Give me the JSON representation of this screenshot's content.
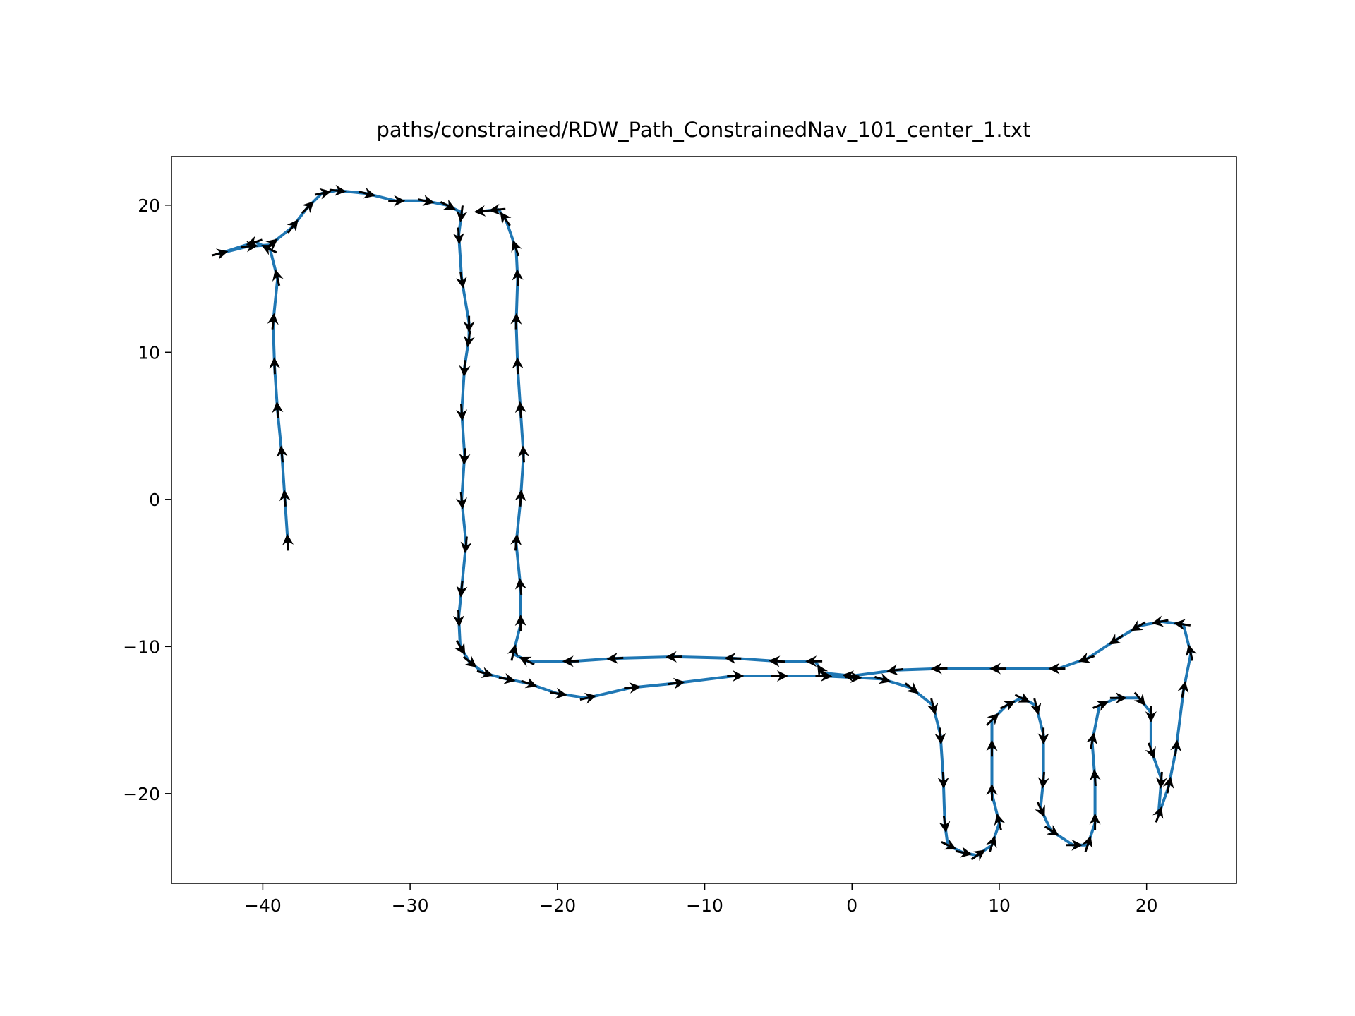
{
  "chart_data": {
    "type": "line",
    "title": "paths/constrained/RDW_Path_ConstrainedNav_101_center_1.txt",
    "x": [
      -38.3,
      -38.5,
      -38.7,
      -39.0,
      -39.2,
      -39.3,
      -39.0,
      -39.5,
      -40.5,
      -43.0,
      -41.0,
      -39.5,
      -38.0,
      -37.0,
      -36.0,
      -35.0,
      -33.0,
      -31.0,
      -29.0,
      -27.5,
      -26.5,
      -26.7,
      -26.5,
      -26.0,
      -26.0,
      -26.3,
      -26.5,
      -26.3,
      -26.5,
      -26.2,
      -26.5,
      -26.7,
      -26.6,
      -26.0,
      -25.0,
      -23.5,
      -22.0,
      -20.0,
      -18.0,
      -15.0,
      -12.0,
      -8.0,
      -5.0,
      -2.0,
      0.0,
      2.0,
      4.0,
      5.5,
      6.0,
      6.2,
      6.3,
      6.5,
      7.5,
      8.5,
      9.5,
      10.0,
      9.5,
      9.5,
      9.5,
      10.5,
      11.5,
      12.5,
      13.0,
      13.0,
      12.8,
      13.5,
      15.0,
      16.0,
      16.5,
      16.5,
      16.3,
      16.8,
      18.0,
      19.5,
      20.3,
      20.3,
      21.0,
      20.8,
      21.5,
      22.0,
      22.5,
      23.0,
      22.5,
      21.0,
      19.5,
      18.0,
      16.0,
      14.0,
      10.0,
      6.0,
      3.0,
      0.0,
      -2.0,
      -2.5,
      -5.0,
      -8.0,
      -12.0,
      -16.0,
      -19.0,
      -22.0,
      -23.0,
      -22.5,
      -22.5,
      -22.8,
      -22.5,
      -22.3,
      -22.5,
      -22.7,
      -22.8,
      -22.7,
      -22.8,
      -23.5,
      -24.0,
      -25.0
    ],
    "values": [
      -3.0,
      0.0,
      3.0,
      6.0,
      9.0,
      12.0,
      15.0,
      17.0,
      17.5,
      16.7,
      17.2,
      17.3,
      18.5,
      19.8,
      20.8,
      21.0,
      20.8,
      20.3,
      20.3,
      20.0,
      19.5,
      18.0,
      15.0,
      12.0,
      11.0,
      9.0,
      6.0,
      3.0,
      0.0,
      -3.0,
      -6.0,
      -8.0,
      -10.0,
      -11.0,
      -11.8,
      -12.2,
      -12.5,
      -13.2,
      -13.5,
      -12.8,
      -12.5,
      -12.0,
      -12.0,
      -12.0,
      -12.1,
      -12.2,
      -12.8,
      -14.0,
      -16.0,
      -19.0,
      -22.0,
      -23.5,
      -24.0,
      -24.2,
      -23.5,
      -22.0,
      -20.0,
      -17.0,
      -15.0,
      -14.0,
      -13.5,
      -14.0,
      -16.0,
      -19.0,
      -21.0,
      -22.5,
      -23.5,
      -23.5,
      -22.0,
      -19.0,
      -16.5,
      -14.0,
      -13.5,
      -13.5,
      -14.5,
      -17.0,
      -19.0,
      -21.5,
      -19.5,
      -17.0,
      -13.0,
      -10.5,
      -8.5,
      -8.3,
      -8.6,
      -9.5,
      -10.8,
      -11.5,
      -11.5,
      -11.5,
      -11.6,
      -12.0,
      -11.8,
      -11.0,
      -11.0,
      -10.8,
      -10.7,
      -10.8,
      -11.0,
      -11.0,
      -10.5,
      -8.5,
      -6.0,
      -3.0,
      0.0,
      3.0,
      6.0,
      9.0,
      12.0,
      15.0,
      17.0,
      19.0,
      19.7,
      19.6
    ],
    "color": "#1f77b4",
    "arrow_color": "#000000",
    "xlim": [
      -46.2,
      26.1
    ],
    "ylim": [
      -26.1,
      23.3
    ],
    "xticks": [
      {
        "value": -40,
        "label": "−40"
      },
      {
        "value": -30,
        "label": "−30"
      },
      {
        "value": -20,
        "label": "−20"
      },
      {
        "value": -10,
        "label": "−10"
      },
      0,
      10,
      20
    ],
    "yticks": [
      {
        "value": -20,
        "label": "−20"
      },
      {
        "value": -10,
        "label": "−10"
      },
      0,
      10,
      20
    ]
  }
}
